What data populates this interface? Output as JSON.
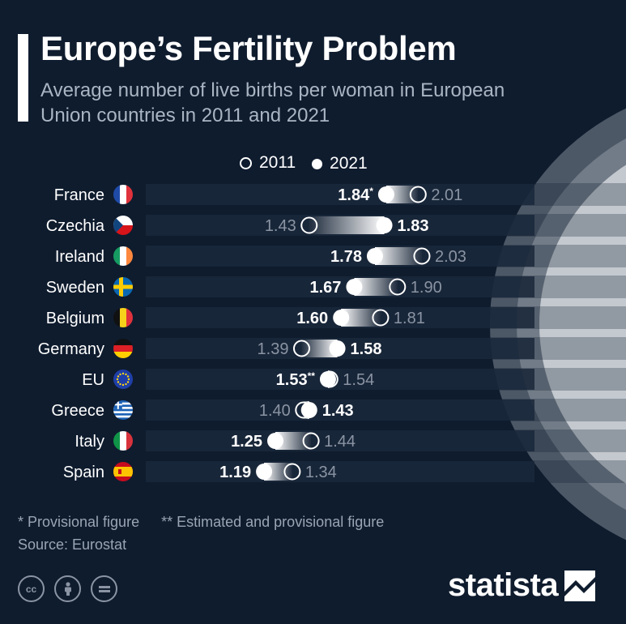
{
  "header": {
    "title": "Europe’s Fertility Problem",
    "subtitle": "Average number of live births per woman in European Union countries in 2011 and 2021"
  },
  "legend": {
    "y2011": "2011",
    "y2021": "2021"
  },
  "chart_data": {
    "type": "dumbbell",
    "title": "Europe’s Fertility Problem",
    "subtitle": "Average number of live births per woman in European Union countries in 2011 and 2021",
    "categories": [
      "France",
      "Czechia",
      "Ireland",
      "Sweden",
      "Belgium",
      "Germany",
      "EU",
      "Greece",
      "Italy",
      "Spain"
    ],
    "series": [
      {
        "name": "2011",
        "marker": "open",
        "values": [
          2.01,
          1.43,
          2.03,
          1.9,
          1.81,
          1.39,
          1.54,
          1.4,
          1.44,
          1.34
        ]
      },
      {
        "name": "2021",
        "marker": "filled",
        "values": [
          1.84,
          1.83,
          1.78,
          1.67,
          1.6,
          1.58,
          1.53,
          1.43,
          1.25,
          1.19
        ]
      }
    ],
    "labels_2011": [
      "2.01",
      "1.43",
      "2.03",
      "1.90",
      "1.81",
      "1.39",
      "1.54",
      "1.40",
      "1.44",
      "1.34"
    ],
    "labels_2021": [
      "1.84*",
      "1.83",
      "1.78",
      "1.67",
      "1.60",
      "1.58",
      "1.53**",
      "1.43",
      "1.25",
      "1.19"
    ],
    "flags": [
      "france-flag-icon",
      "czechia-flag-icon",
      "ireland-flag-icon",
      "sweden-flag-icon",
      "belgium-flag-icon",
      "germany-flag-icon",
      "eu-flag-icon",
      "greece-flag-icon",
      "italy-flag-icon",
      "spain-flag-icon"
    ],
    "legend_position": "top",
    "grid": false
  },
  "footer": {
    "note1": "* Provisional figure",
    "note2": "** Estimated and provisional figure",
    "source": "Source: Eurostat",
    "brand": "statista",
    "cc_icons": [
      "creative-commons-icon",
      "attribution-icon",
      "no-derivatives-icon"
    ]
  },
  "colors": {
    "background": "#0f1c2e",
    "row_band": "#1a283b",
    "value_2011": "#8a94a3",
    "value_2021": "#ffffff",
    "subtitle": "#aab5c3"
  }
}
